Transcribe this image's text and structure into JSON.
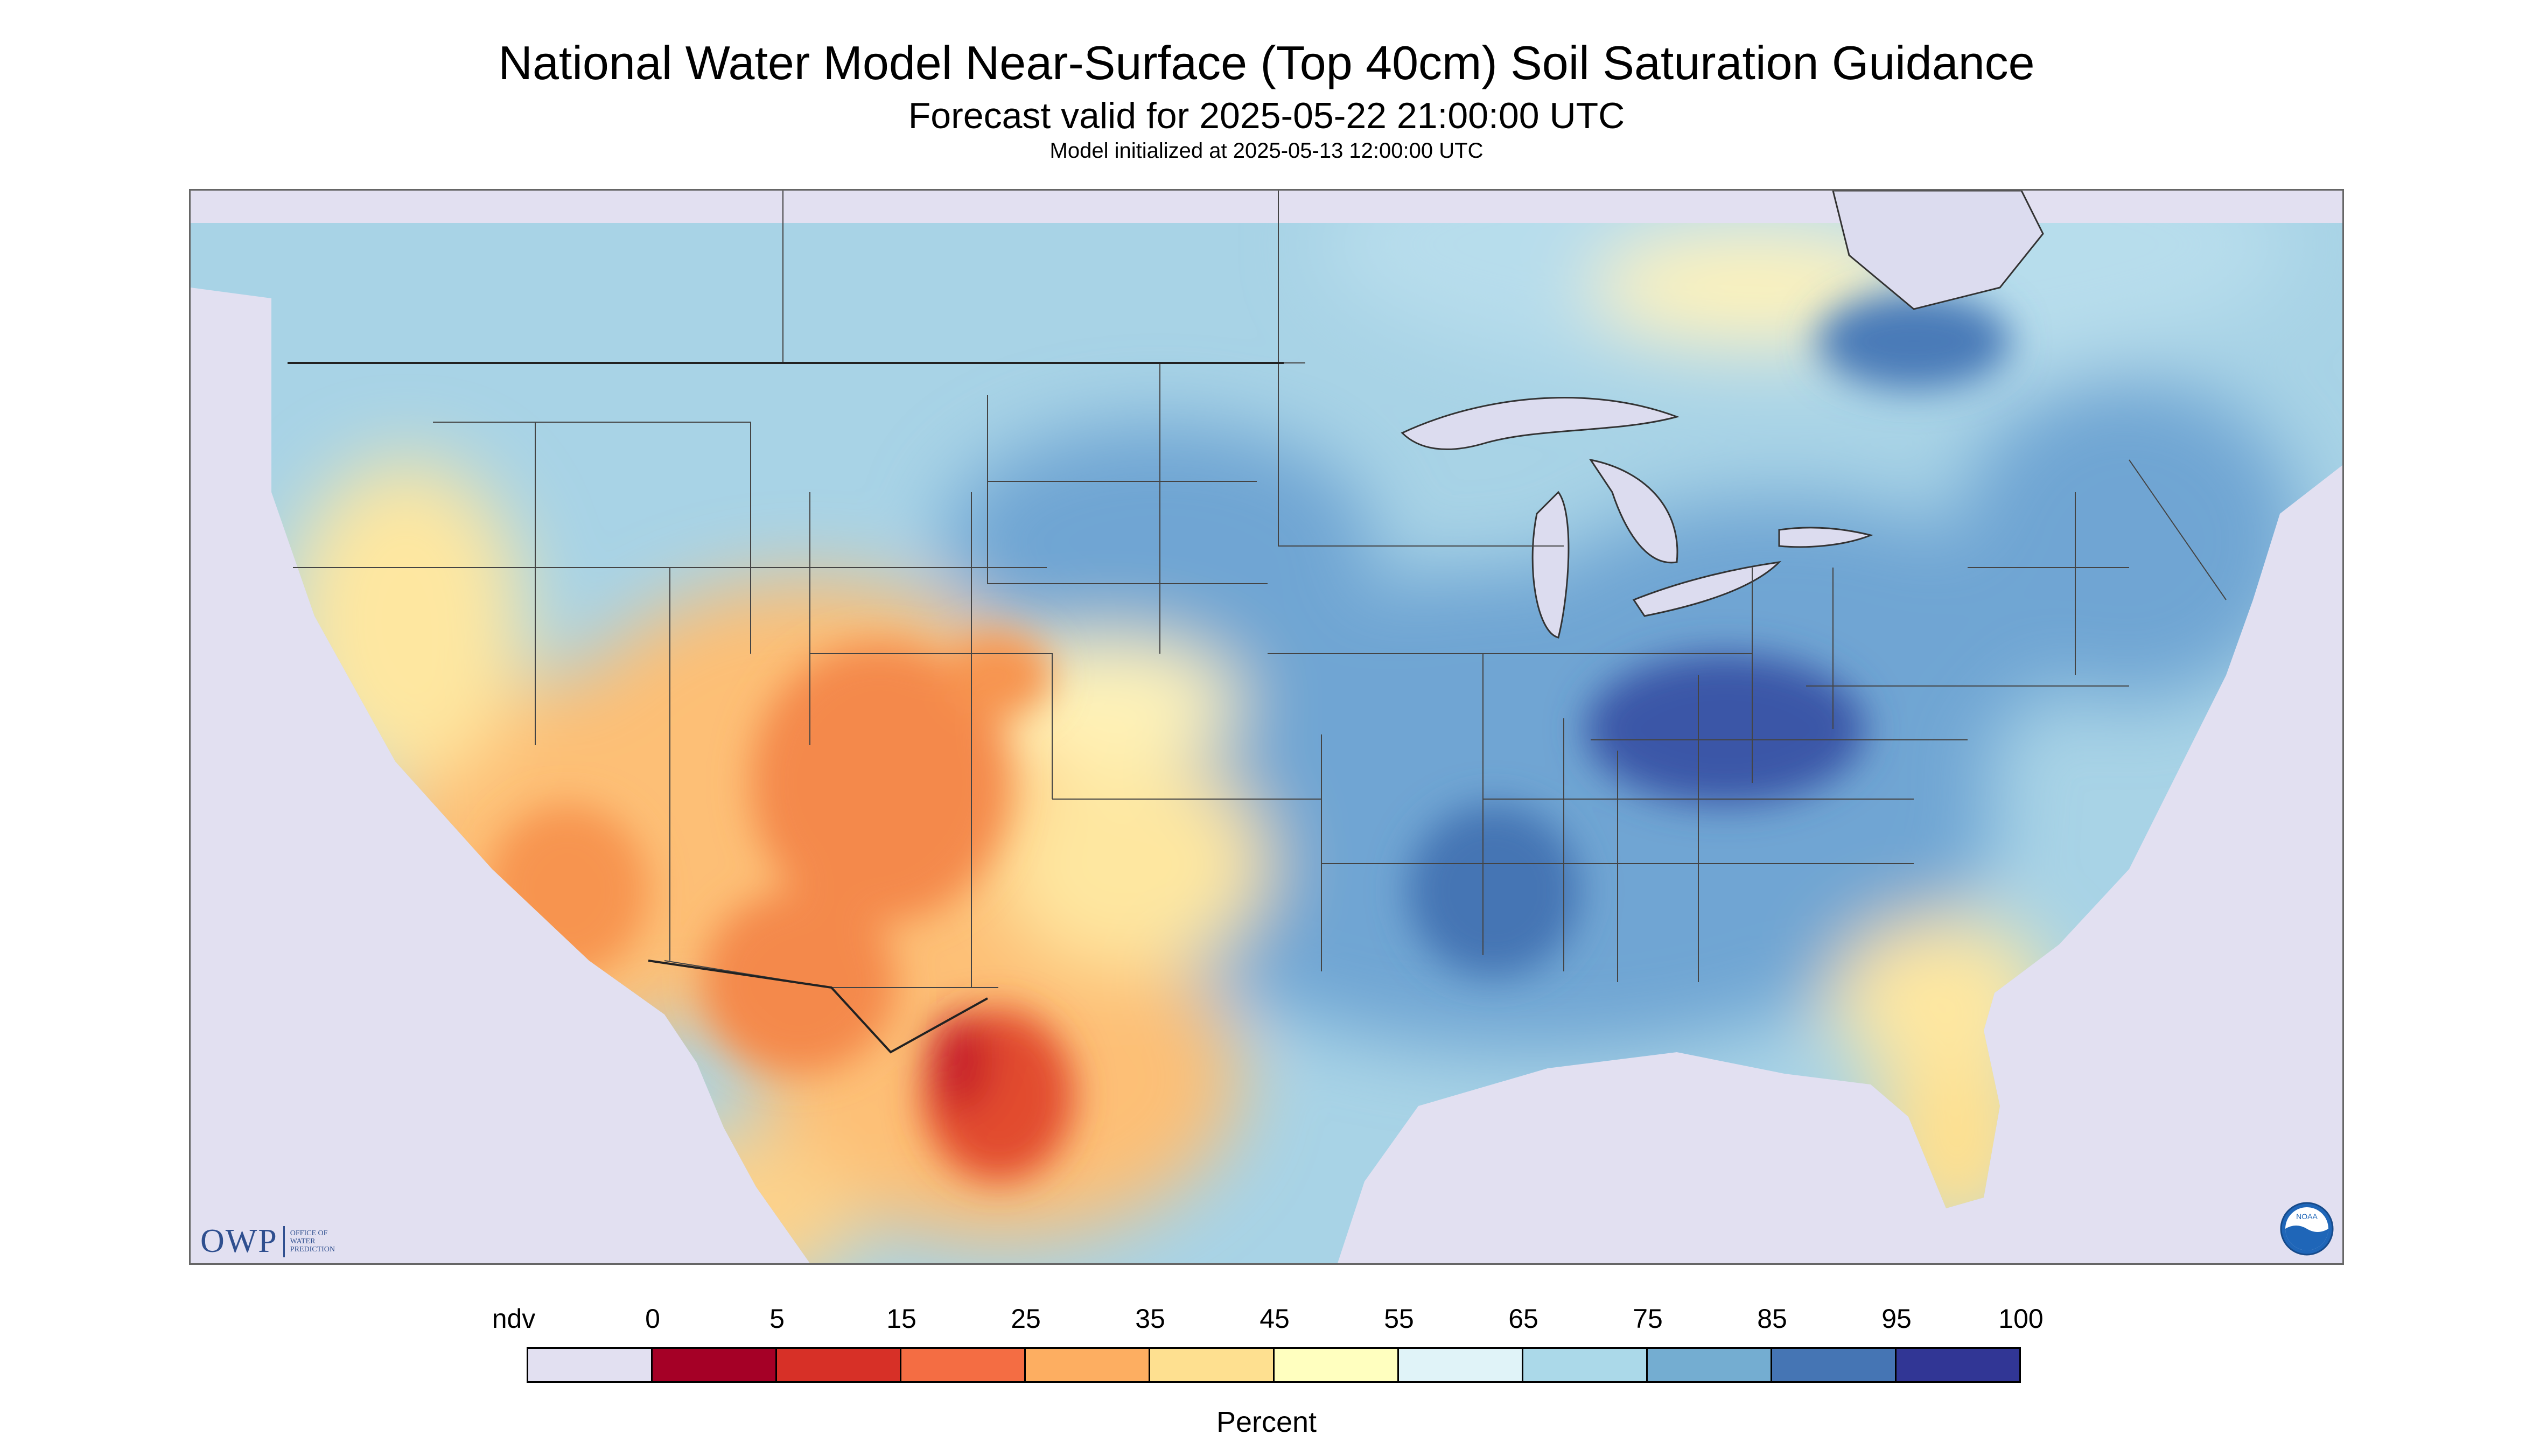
{
  "header": {
    "title": "National Water Model Near-Surface (Top 40cm) Soil Saturation Guidance",
    "subtitle": "Forecast valid for 2025-05-22 21:00:00 UTC",
    "init": "Model initialized at 2025-05-13 12:00:00 UTC"
  },
  "logos": {
    "owp_text": "OWP",
    "owp_line1": "OFFICE OF",
    "owp_line2": "WATER",
    "owp_line3": "PREDICTION",
    "noaa_text": "NOAA"
  },
  "legend": {
    "unit_label": "Percent",
    "ticks": [
      "ndv",
      "0",
      "5",
      "15",
      "25",
      "35",
      "45",
      "55",
      "65",
      "75",
      "85",
      "95",
      "100"
    ],
    "colors": [
      "#e2e0f1",
      "#a50026",
      "#d73027",
      "#f46d43",
      "#fdae61",
      "#fee090",
      "#ffffbf",
      "#e0f3f8",
      "#abd9e9",
      "#74add1",
      "#4575b4",
      "#313695"
    ]
  },
  "map": {
    "ndv_color": "#e2e0f1",
    "canada_color": "#b3d9ea",
    "water_color": "#dcdcef",
    "wet_color": "#6fa5d3",
    "very_wet_color": "#3a57a7",
    "moist_color": "#a8d3e6",
    "dry_color": "#fde08f",
    "drier_color": "#fcae61",
    "driest_color": "#e24b2e"
  }
}
